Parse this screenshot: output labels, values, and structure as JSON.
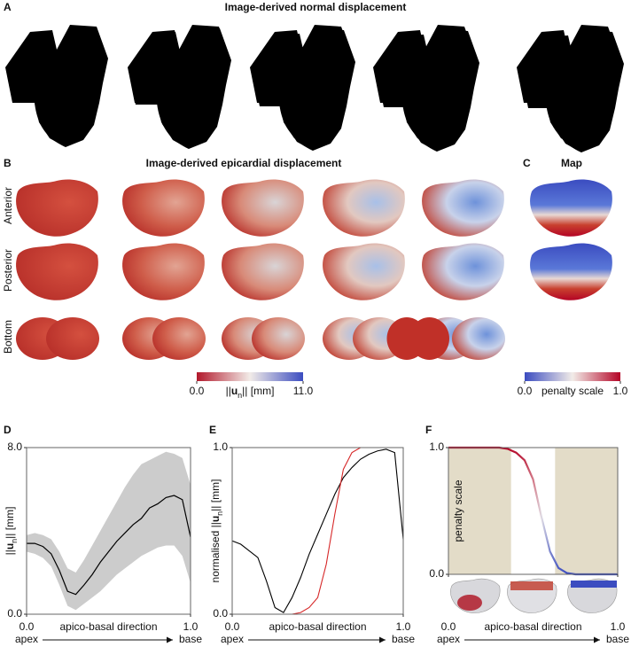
{
  "panel_a": {
    "letter": "A",
    "title": "Image-derived normal displacement"
  },
  "panel_b": {
    "letter": "B",
    "title": "Image-derived epicardial displacement",
    "views": [
      "Anterior",
      "Posterior",
      "Bottom"
    ],
    "colorbar": {
      "colormap": [
        "#b2182b",
        "#f2ece8",
        "#3b4cc0"
      ],
      "lim": [
        0,
        11
      ],
      "ticks": [
        {
          "value": 0,
          "label": "0.0"
        },
        {
          "value": 11,
          "label": "11.0"
        }
      ],
      "label": [
        "||",
        "u",
        "n",
        "|| [mm]"
      ]
    }
  },
  "panel_c": {
    "letter": "C",
    "title": "Map",
    "colorbar": {
      "colormap": [
        "#3b4cc0",
        "#f2ece8",
        "#b40426"
      ],
      "lim": [
        0,
        1
      ],
      "ticks": [
        {
          "value": 0,
          "label": "0.0"
        },
        {
          "value": 1,
          "label": "1.0"
        }
      ],
      "label": [
        "penalty scale"
      ]
    }
  },
  "chart_data": [
    {
      "label": "D",
      "type": "band-line",
      "x": [
        0,
        0.05,
        0.1,
        0.15,
        0.2,
        0.25,
        0.3,
        0.35,
        0.4,
        0.45,
        0.5,
        0.55,
        0.6,
        0.65,
        0.7,
        0.75,
        0.8,
        0.85,
        0.9,
        0.95,
        1.0
      ],
      "values": [
        3.4,
        3.4,
        3.25,
        2.9,
        2.1,
        1.1,
        0.95,
        1.4,
        1.9,
        2.5,
        3.0,
        3.5,
        3.9,
        4.3,
        4.6,
        5.1,
        5.3,
        5.6,
        5.7,
        5.5,
        3.7
      ],
      "lower": [
        3.0,
        2.9,
        2.7,
        2.3,
        1.4,
        0.4,
        0.2,
        0.5,
        0.8,
        1.1,
        1.5,
        1.9,
        2.2,
        2.5,
        2.8,
        3.0,
        3.2,
        3.3,
        3.3,
        2.8,
        1.5
      ],
      "upper": [
        3.8,
        3.9,
        3.8,
        3.6,
        3.0,
        2.2,
        2.0,
        2.6,
        3.3,
        4.0,
        4.7,
        5.4,
        6.1,
        6.7,
        7.2,
        7.4,
        7.6,
        7.8,
        7.7,
        7.5,
        6.2
      ],
      "color": "#000000",
      "band_color": "#cccccc",
      "xlim": [
        0,
        1
      ],
      "ylim": [
        0,
        8
      ],
      "xticks": [
        {
          "value": 0,
          "label": "0.0"
        },
        {
          "value": 1,
          "label": "1.0"
        }
      ],
      "yticks": [
        {
          "value": 0,
          "label": "0.0"
        },
        {
          "value": 8,
          "label": "8.0"
        }
      ],
      "xlabel": "apico-basal direction",
      "ylabel": [
        "||",
        "u",
        "n",
        "|| [mm]"
      ],
      "x_start": "apex",
      "x_end": "base"
    },
    {
      "label": "E",
      "type": "line",
      "x": [
        0,
        0.05,
        0.1,
        0.15,
        0.2,
        0.25,
        0.3,
        0.35,
        0.4,
        0.45,
        0.5,
        0.55,
        0.6,
        0.65,
        0.7,
        0.75,
        0.8,
        0.85,
        0.9,
        0.95,
        1.0
      ],
      "series": [
        {
          "color": "#000000",
          "values": [
            0.44,
            0.42,
            0.38,
            0.34,
            0.2,
            0.04,
            0.01,
            0.1,
            0.22,
            0.36,
            0.48,
            0.6,
            0.72,
            0.82,
            0.88,
            0.93,
            0.96,
            0.98,
            0.99,
            0.97,
            0.45
          ]
        },
        {
          "color": "#d62728",
          "values": [
            0,
            0,
            0,
            0,
            0,
            0,
            0,
            0,
            0.01,
            0.04,
            0.1,
            0.3,
            0.6,
            0.87,
            0.97,
            1,
            1,
            1,
            1,
            1,
            1
          ]
        }
      ],
      "xlim": [
        0,
        1
      ],
      "ylim": [
        0,
        1
      ],
      "xticks": [
        {
          "value": 0,
          "label": "0.0"
        },
        {
          "value": 1,
          "label": "1.0"
        }
      ],
      "yticks": [
        {
          "value": 0,
          "label": "0.0"
        },
        {
          "value": 1,
          "label": "1.0"
        }
      ],
      "xlabel": "apico-basal direction",
      "ylabel": [
        "normalised ||",
        "u",
        "n",
        "|| [mm]"
      ],
      "x_start": "apex",
      "x_end": "base"
    },
    {
      "label": "F",
      "type": "gradient-line",
      "x": [
        0,
        0.05,
        0.1,
        0.15,
        0.2,
        0.25,
        0.3,
        0.35,
        0.4,
        0.45,
        0.5,
        0.55,
        0.6,
        0.65,
        0.7,
        0.75,
        0.8,
        0.85,
        0.9,
        0.95,
        1.0
      ],
      "values": [
        1,
        1,
        1,
        1,
        1,
        1,
        1,
        0.99,
        0.96,
        0.9,
        0.75,
        0.45,
        0.18,
        0.05,
        0.01,
        0,
        0,
        0,
        0,
        0,
        0
      ],
      "colormap": [
        "#3b4cc0",
        "#f2ece8",
        "#b40426"
      ],
      "shaded": [
        [
          0,
          0.37
        ],
        [
          0.63,
          1
        ]
      ],
      "shade_color": "#e3dcc8",
      "xlim": [
        0,
        1
      ],
      "ylim": [
        0,
        1
      ],
      "xticks": [
        {
          "value": 0,
          "label": "0.0"
        },
        {
          "value": 1,
          "label": "1.0"
        }
      ],
      "yticks": [
        {
          "value": 0,
          "label": "0.0"
        },
        {
          "value": 1,
          "label": "1.0"
        }
      ],
      "xlabel": "apico-basal direction",
      "ylabel": [
        "penalty scale"
      ],
      "x_start": "apex",
      "x_end": "base"
    }
  ]
}
